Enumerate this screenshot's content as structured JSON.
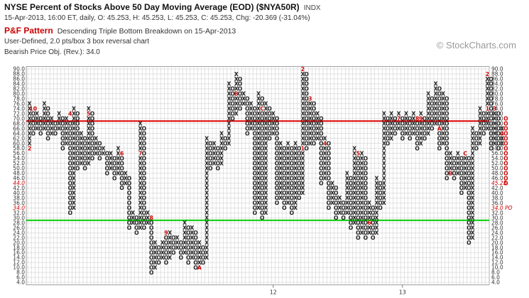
{
  "header": {
    "title": "NYSE Percent of Stocks Above 50 Day Moving Average (EOD) ($NYA50R)",
    "index_tag": "INDX",
    "quote_line": "15-Apr-2013, 16:00 ET, daily, O: 45.253, H: 45.253, L: 45.253, C: 45.253, Chg: -20.369 (-31.04%)",
    "pattern_label": "P&F Pattern",
    "pattern_desc": "Descending Triple Bottom Breakdown on 15-Apr-2013",
    "scale_line": "User-Defined, 2.0 pts/box 3 box reversal chart",
    "objective_line": "Bearish Price Obj. (Rev.): 34.0",
    "logo": "© StockCharts.com"
  },
  "chart_data": {
    "type": "point-and-figure",
    "box_size": 2.0,
    "reversal": 3,
    "ylim": [
      4,
      90
    ],
    "y_tick_step": 2,
    "colors": {
      "x": "#222222",
      "o": "#222222",
      "month": "#cc0000",
      "resistance": "#dd0000",
      "support": "#00cc00",
      "grid": "#c8c8c8"
    },
    "lines": [
      {
        "name": "resistance",
        "value": 69,
        "color": "#dd0000"
      },
      {
        "name": "support",
        "value": 29,
        "color": "#00cc00"
      }
    ],
    "x_labels": [
      {
        "label": "12",
        "column": 66
      },
      {
        "label": "13",
        "column": 101
      }
    ],
    "right_axis_callouts": [
      {
        "label": "45.25",
        "value": 44,
        "color": "#cc0000"
      },
      {
        "label": "34.0 PO",
        "value": 34,
        "color": "#cc0000"
      }
    ],
    "left_axis_highlights": [
      {
        "value": 44
      },
      {
        "value": 34
      }
    ],
    "columns": [
      {
        "t": "X",
        "lo": 58,
        "hi": 76,
        "m": {
          "58": "2"
        }
      },
      {
        "t": "O",
        "lo": 64,
        "hi": 74,
        "m": {
          "74": "10"
        }
      },
      {
        "t": "X",
        "lo": 66,
        "hi": 72
      },
      {
        "t": "O",
        "lo": 64,
        "hi": 70
      },
      {
        "t": "X",
        "lo": 66,
        "hi": 76
      },
      {
        "t": "O",
        "lo": 62,
        "hi": 74
      },
      {
        "t": "X",
        "lo": 64,
        "hi": 70
      },
      {
        "t": "O",
        "lo": 64,
        "hi": 68
      },
      {
        "t": "X",
        "lo": 66,
        "hi": 72
      },
      {
        "t": "O",
        "lo": 58,
        "hi": 70
      },
      {
        "t": "X",
        "lo": 60,
        "hi": 70
      },
      {
        "t": "O",
        "lo": 32,
        "hi": 68,
        "m": {
          "72": "4"
        }
      },
      {
        "t": "X",
        "lo": 34,
        "hi": 74
      },
      {
        "t": "O",
        "lo": 50,
        "hi": 72
      },
      {
        "t": "X",
        "lo": 52,
        "hi": 64
      },
      {
        "t": "O",
        "lo": 50,
        "hi": 62
      },
      {
        "t": "X",
        "lo": 52,
        "hi": 74,
        "m": {
          "72": "5"
        }
      },
      {
        "t": "O",
        "lo": 54,
        "hi": 72
      },
      {
        "t": "X",
        "lo": 56,
        "hi": 62
      },
      {
        "t": "O",
        "lo": 54,
        "hi": 60
      },
      {
        "t": "X",
        "lo": 56,
        "hi": 58
      },
      {
        "t": "O",
        "lo": 48,
        "hi": 56
      },
      {
        "t": "X",
        "lo": 50,
        "hi": 56
      },
      {
        "t": "O",
        "lo": 46,
        "hi": 54
      },
      {
        "t": "X",
        "lo": 48,
        "hi": 58
      },
      {
        "t": "O",
        "lo": 42,
        "hi": 56,
        "m": {
          "56": "6"
        }
      },
      {
        "t": "X",
        "lo": 44,
        "hi": 48
      },
      {
        "t": "O",
        "lo": 26,
        "hi": 46
      },
      {
        "t": "X",
        "lo": 28,
        "hi": 32
      },
      {
        "t": "O",
        "lo": 24,
        "hi": 30
      },
      {
        "t": "X",
        "lo": 26,
        "hi": 68,
        "m": {
          "56": "7"
        }
      },
      {
        "t": "O",
        "lo": 26,
        "hi": 66
      },
      {
        "t": "X",
        "lo": 28,
        "hi": 32
      },
      {
        "t": "O",
        "lo": 8,
        "hi": 30,
        "m": {
          "30": "8"
        }
      },
      {
        "t": "X",
        "lo": 10,
        "hi": 20
      },
      {
        "t": "O",
        "lo": 12,
        "hi": 18
      },
      {
        "t": "X",
        "lo": 14,
        "hi": 20
      },
      {
        "t": "O",
        "lo": 12,
        "hi": 22,
        "m": {
          "24": "9"
        }
      },
      {
        "t": "X",
        "lo": 14,
        "hi": 24
      },
      {
        "t": "O",
        "lo": 16,
        "hi": 22
      },
      {
        "t": "X",
        "lo": 18,
        "hi": 22
      },
      {
        "t": "O",
        "lo": 14,
        "hi": 20
      },
      {
        "t": "X",
        "lo": 16,
        "hi": 28
      },
      {
        "t": "O",
        "lo": 12,
        "hi": 26
      },
      {
        "t": "X",
        "lo": 14,
        "hi": 26
      },
      {
        "t": "O",
        "lo": 10,
        "hi": 24
      },
      {
        "t": "X",
        "lo": 10,
        "hi": 20,
        "m": {
          "10": "A"
        }
      },
      {
        "t": "O",
        "lo": 12,
        "hi": 18
      },
      {
        "t": "X",
        "lo": 14,
        "hi": 62
      },
      {
        "t": "O",
        "lo": 50,
        "hi": 60
      },
      {
        "t": "X",
        "lo": 52,
        "hi": 60
      },
      {
        "t": "O",
        "lo": 50,
        "hi": 58
      },
      {
        "t": "X",
        "lo": 52,
        "hi": 64
      },
      {
        "t": "O",
        "lo": 58,
        "hi": 62
      },
      {
        "t": "X",
        "lo": 60,
        "hi": 84
      },
      {
        "t": "O",
        "lo": 70,
        "hi": 82
      },
      {
        "t": "X",
        "lo": 72,
        "hi": 88,
        "m": {
          "80": "B"
        }
      },
      {
        "t": "O",
        "lo": 74,
        "hi": 86
      },
      {
        "t": "X",
        "lo": 76,
        "hi": 80
      },
      {
        "t": "O",
        "lo": 64,
        "hi": 78
      },
      {
        "t": "X",
        "lo": 66,
        "hi": 76
      },
      {
        "t": "O",
        "lo": 32,
        "hi": 74
      },
      {
        "t": "X",
        "lo": 34,
        "hi": 80
      },
      {
        "t": "O",
        "lo": 30,
        "hi": 78,
        "m": {
          "74": "C"
        }
      },
      {
        "t": "X",
        "lo": 32,
        "hi": 76
      },
      {
        "t": "O",
        "lo": 62,
        "hi": 74
      },
      {
        "t": "X",
        "lo": 64,
        "hi": 72
      },
      {
        "t": "O",
        "lo": 36,
        "hi": 70
      },
      {
        "t": "X",
        "lo": 38,
        "hi": 60
      },
      {
        "t": "O",
        "lo": 34,
        "hi": 58
      },
      {
        "t": "X",
        "lo": 36,
        "hi": 60
      },
      {
        "t": "O",
        "lo": 32,
        "hi": 58
      },
      {
        "t": "X",
        "lo": 34,
        "hi": 60
      },
      {
        "t": "O",
        "lo": 38,
        "hi": 58
      },
      {
        "t": "X",
        "lo": 40,
        "hi": 90,
        "m": {
          "58": "1",
          "90": "2"
        }
      },
      {
        "t": "O",
        "lo": 58,
        "hi": 88
      },
      {
        "t": "X",
        "lo": 60,
        "hi": 78,
        "m": {
          "78": "3"
        }
      },
      {
        "t": "O",
        "lo": 60,
        "hi": 76
      },
      {
        "t": "X",
        "lo": 62,
        "hi": 72
      },
      {
        "t": "O",
        "lo": 44,
        "hi": 70
      },
      {
        "t": "X",
        "lo": 46,
        "hi": 62,
        "m": {
          "60": "4"
        }
      },
      {
        "t": "O",
        "lo": 34,
        "hi": 60
      },
      {
        "t": "X",
        "lo": 36,
        "hi": 44
      },
      {
        "t": "O",
        "lo": 30,
        "hi": 42
      },
      {
        "t": "X",
        "lo": 32,
        "hi": 38
      },
      {
        "t": "O",
        "lo": 30,
        "hi": 36
      },
      {
        "t": "X",
        "lo": 32,
        "hi": 48
      },
      {
        "t": "O",
        "lo": 26,
        "hi": 46
      },
      {
        "t": "X",
        "lo": 28,
        "hi": 58
      },
      {
        "t": "O",
        "lo": 22,
        "hi": 56,
        "m": {
          "56": "5"
        }
      },
      {
        "t": "X",
        "lo": 24,
        "hi": 56
      },
      {
        "t": "O",
        "lo": 22,
        "hi": 54
      },
      {
        "t": "X",
        "lo": 24,
        "hi": 36,
        "m": {
          "28": "6"
        }
      },
      {
        "t": "O",
        "lo": 22,
        "hi": 34
      },
      {
        "t": "X",
        "lo": 24,
        "hi": 46
      },
      {
        "t": "O",
        "lo": 34,
        "hi": 44
      },
      {
        "t": "X",
        "lo": 36,
        "hi": 72
      },
      {
        "t": "O",
        "lo": 60,
        "hi": 70
      },
      {
        "t": "X",
        "lo": 62,
        "hi": 72
      },
      {
        "t": "O",
        "lo": 64,
        "hi": 70
      },
      {
        "t": "X",
        "lo": 66,
        "hi": 72,
        "m": {
          "70": "7"
        }
      },
      {
        "t": "O",
        "lo": 62,
        "hi": 70
      },
      {
        "t": "X",
        "lo": 64,
        "hi": 72
      },
      {
        "t": "O",
        "lo": 62,
        "hi": 70
      },
      {
        "t": "X",
        "lo": 64,
        "hi": 72
      },
      {
        "t": "O",
        "lo": 58,
        "hi": 70,
        "m": {
          "70": "8"
        }
      },
      {
        "t": "X",
        "lo": 60,
        "hi": 72,
        "m": {
          "70": "9"
        }
      },
      {
        "t": "O",
        "lo": 62,
        "hi": 70
      },
      {
        "t": "X",
        "lo": 64,
        "hi": 80
      },
      {
        "t": "O",
        "lo": 66,
        "hi": 78
      },
      {
        "t": "X",
        "lo": 68,
        "hi": 84
      },
      {
        "t": "O",
        "lo": 58,
        "hi": 82,
        "m": {
          "66": "A"
        }
      },
      {
        "t": "X",
        "lo": 60,
        "hi": 80
      },
      {
        "t": "O",
        "lo": 46,
        "hi": 78
      },
      {
        "t": "X",
        "lo": 48,
        "hi": 56,
        "m": {
          "48": "B"
        }
      },
      {
        "t": "O",
        "lo": 46,
        "hi": 54
      },
      {
        "t": "X",
        "lo": 48,
        "hi": 56
      },
      {
        "t": "O",
        "lo": 40,
        "hi": 54
      },
      {
        "t": "X",
        "lo": 42,
        "hi": 56,
        "m": {
          "56": "C"
        }
      },
      {
        "t": "O",
        "lo": 20,
        "hi": 54
      },
      {
        "t": "X",
        "lo": 22,
        "hi": 66
      },
      {
        "t": "O",
        "lo": 58,
        "hi": 64
      },
      {
        "t": "X",
        "lo": 60,
        "hi": 74
      },
      {
        "t": "O",
        "lo": 64,
        "hi": 72
      },
      {
        "t": "X",
        "lo": 66,
        "hi": 88,
        "m": {
          "74": "1",
          "88": "2"
        }
      },
      {
        "t": "O",
        "lo": 58,
        "hi": 86
      },
      {
        "t": "X",
        "lo": 60,
        "hi": 74,
        "m": {
          "74": "3"
        }
      },
      {
        "t": "O",
        "lo": 58,
        "hi": 72
      },
      {
        "t": "X",
        "lo": 60,
        "hi": 66,
        "m": {
          "64": "4"
        }
      },
      {
        "t": "O",
        "lo": 44,
        "hi": 70
      }
    ]
  }
}
